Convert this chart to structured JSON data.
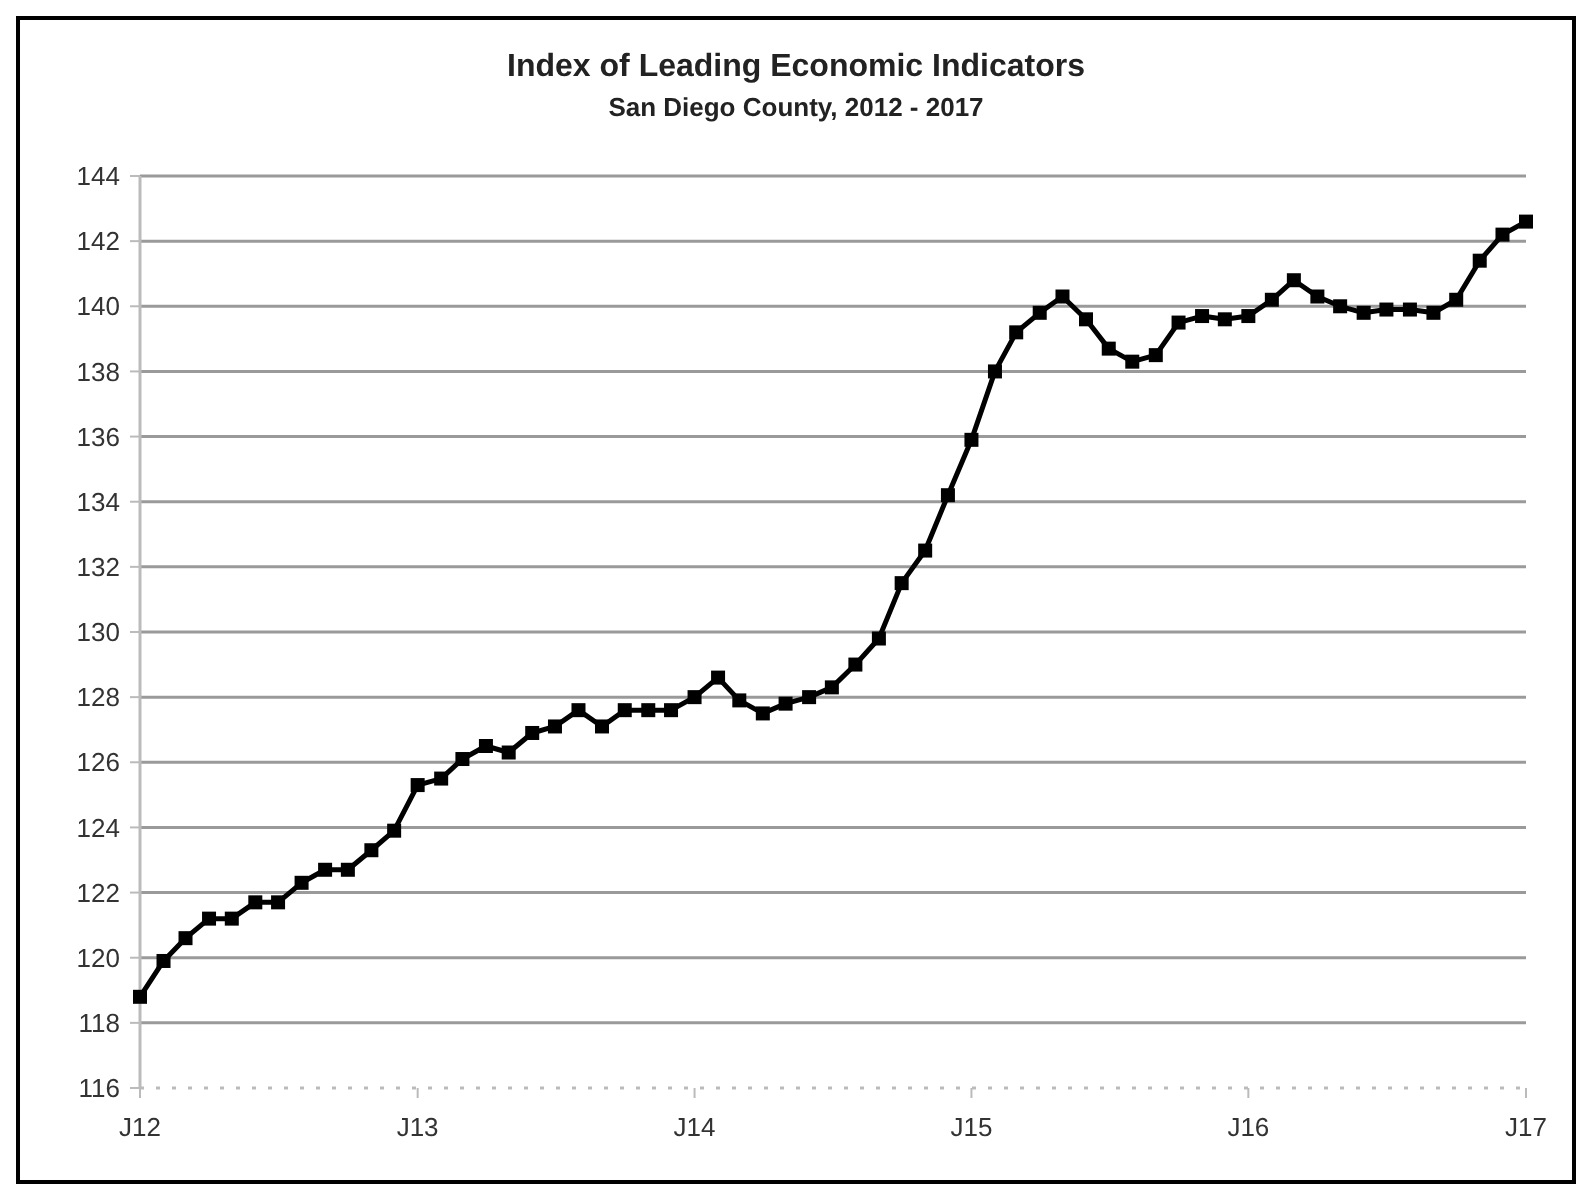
{
  "chart_data": {
    "type": "line",
    "title": "Index of Leading Economic Indicators",
    "subtitle": "San Diego County, 2012 - 2017",
    "x": [
      "2012-01",
      "2012-02",
      "2012-03",
      "2012-04",
      "2012-05",
      "2012-06",
      "2012-07",
      "2012-08",
      "2012-09",
      "2012-10",
      "2012-11",
      "2012-12",
      "2013-01",
      "2013-02",
      "2013-03",
      "2013-04",
      "2013-05",
      "2013-06",
      "2013-07",
      "2013-08",
      "2013-09",
      "2013-10",
      "2013-11",
      "2013-12",
      "2014-01",
      "2014-02",
      "2014-03",
      "2014-04",
      "2014-05",
      "2014-06",
      "2014-07",
      "2014-08",
      "2014-09",
      "2014-10",
      "2014-11",
      "2014-12",
      "2015-01",
      "2015-02",
      "2015-03",
      "2015-04",
      "2015-05",
      "2015-06",
      "2015-07",
      "2015-08",
      "2015-09",
      "2015-10",
      "2015-11",
      "2015-12",
      "2016-01",
      "2016-02",
      "2016-03",
      "2016-04",
      "2016-05",
      "2016-06",
      "2016-07",
      "2016-08",
      "2016-09",
      "2016-10",
      "2016-11",
      "2016-12",
      "2017-01"
    ],
    "series": [
      {
        "color": "#000000",
        "values": [
          118.8,
          119.9,
          120.6,
          121.2,
          121.2,
          121.7,
          121.7,
          122.3,
          122.7,
          122.7,
          123.3,
          123.9,
          125.3,
          125.5,
          126.1,
          126.5,
          126.3,
          126.9,
          127.1,
          127.6,
          127.1,
          127.6,
          127.6,
          127.6,
          128.0,
          128.6,
          127.9,
          127.5,
          127.8,
          128.0,
          128.3,
          129.0,
          129.8,
          131.5,
          132.5,
          134.2,
          135.9,
          138.0,
          139.2,
          139.8,
          140.3,
          139.6,
          138.7,
          138.3,
          138.5,
          139.5,
          139.7,
          139.6,
          139.7,
          140.2,
          140.8,
          140.3,
          140.0,
          139.8,
          139.9,
          139.9,
          139.8,
          140.2,
          141.4,
          142.2,
          142.6
        ]
      }
    ],
    "xlim": [
      "2012-01",
      "2017-01"
    ],
    "xticks": [
      {
        "value": "2012-01",
        "label": "J12"
      },
      {
        "value": "2013-01",
        "label": "J13"
      },
      {
        "value": "2014-01",
        "label": "J14"
      },
      {
        "value": "2015-01",
        "label": "J15"
      },
      {
        "value": "2016-01",
        "label": "J16"
      },
      {
        "value": "2017-01",
        "label": "J17"
      }
    ],
    "ylim": [
      116,
      144
    ],
    "yticks": [
      116,
      118,
      120,
      122,
      124,
      126,
      128,
      130,
      132,
      134,
      136,
      138,
      140,
      142,
      144
    ],
    "grid": "y",
    "marker": "square",
    "line_style": "solid"
  }
}
